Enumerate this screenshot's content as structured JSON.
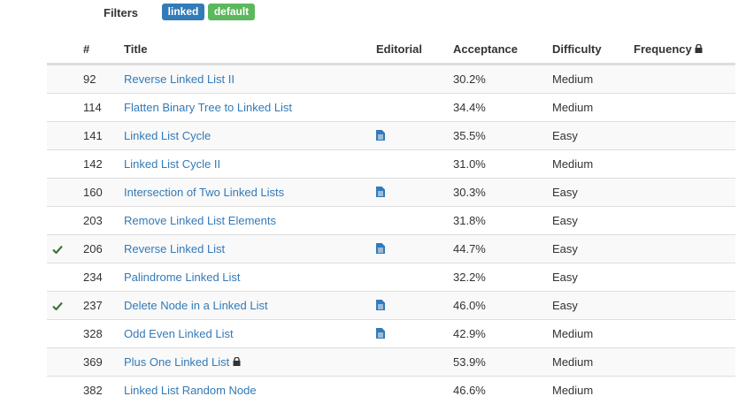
{
  "filters": {
    "label": "Filters",
    "tags": [
      "linked",
      "default"
    ]
  },
  "table": {
    "headers": [
      "#",
      "Title",
      "Editorial",
      "Acceptance",
      "Difficulty",
      "Frequency"
    ],
    "rows": [
      {
        "solved": false,
        "id": 92,
        "title": "Reverse Linked List II",
        "editorial": false,
        "locked": false,
        "acceptance": "30.2%",
        "difficulty": "Medium"
      },
      {
        "solved": false,
        "id": 114,
        "title": "Flatten Binary Tree to Linked List",
        "editorial": false,
        "locked": false,
        "acceptance": "34.4%",
        "difficulty": "Medium"
      },
      {
        "solved": false,
        "id": 141,
        "title": "Linked List Cycle",
        "editorial": true,
        "locked": false,
        "acceptance": "35.5%",
        "difficulty": "Easy"
      },
      {
        "solved": false,
        "id": 142,
        "title": "Linked List Cycle II",
        "editorial": false,
        "locked": false,
        "acceptance": "31.0%",
        "difficulty": "Medium"
      },
      {
        "solved": false,
        "id": 160,
        "title": "Intersection of Two Linked Lists",
        "editorial": true,
        "locked": false,
        "acceptance": "30.3%",
        "difficulty": "Easy"
      },
      {
        "solved": false,
        "id": 203,
        "title": "Remove Linked List Elements",
        "editorial": false,
        "locked": false,
        "acceptance": "31.8%",
        "difficulty": "Easy"
      },
      {
        "solved": true,
        "id": 206,
        "title": "Reverse Linked List",
        "editorial": true,
        "locked": false,
        "acceptance": "44.7%",
        "difficulty": "Easy"
      },
      {
        "solved": false,
        "id": 234,
        "title": "Palindrome Linked List",
        "editorial": false,
        "locked": false,
        "acceptance": "32.2%",
        "difficulty": "Easy"
      },
      {
        "solved": true,
        "id": 237,
        "title": "Delete Node in a Linked List",
        "editorial": true,
        "locked": false,
        "acceptance": "46.0%",
        "difficulty": "Easy"
      },
      {
        "solved": false,
        "id": 328,
        "title": "Odd Even Linked List",
        "editorial": true,
        "locked": false,
        "acceptance": "42.9%",
        "difficulty": "Medium"
      },
      {
        "solved": false,
        "id": 369,
        "title": "Plus One Linked List",
        "editorial": false,
        "locked": true,
        "acceptance": "53.9%",
        "difficulty": "Medium"
      },
      {
        "solved": false,
        "id": 382,
        "title": "Linked List Random Node",
        "editorial": false,
        "locked": false,
        "acceptance": "46.6%",
        "difficulty": "Medium"
      }
    ]
  }
}
